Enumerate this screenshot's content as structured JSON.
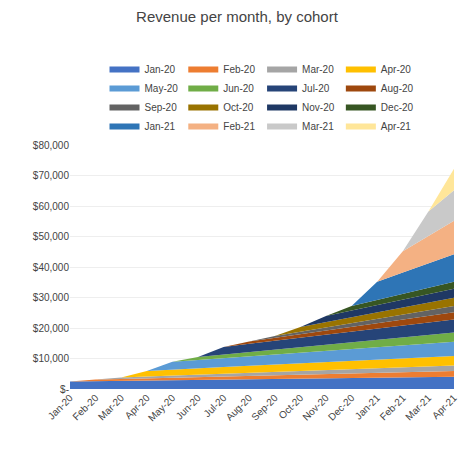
{
  "chart_data": {
    "type": "area",
    "stacked": true,
    "title": "Revenue per month, by cohort",
    "categories": [
      "Jan-20",
      "Feb-20",
      "Mar-20",
      "Apr-20",
      "May-20",
      "Jun-20",
      "Jul-20",
      "Aug-20",
      "Sep-20",
      "Oct-20",
      "Nov-20",
      "Dec-20",
      "Jan-21",
      "Feb-21",
      "Mar-21",
      "Apr-21"
    ],
    "series": [
      {
        "name": "Jan-20",
        "color": "#4472C4",
        "values": [
          2500,
          2600,
          2700,
          2800,
          2900,
          3000,
          3100,
          3200,
          3300,
          3400,
          3500,
          3600,
          3700,
          3800,
          3900,
          4000
        ]
      },
      {
        "name": "Feb-20",
        "color": "#ED7D31",
        "values": [
          0,
          500,
          600,
          700,
          800,
          900,
          1000,
          1100,
          1200,
          1300,
          1400,
          1500,
          1600,
          1700,
          1800,
          1900
        ]
      },
      {
        "name": "Mar-20",
        "color": "#A5A5A5",
        "values": [
          0,
          0,
          500,
          600,
          700,
          800,
          900,
          1000,
          1100,
          1200,
          1300,
          1400,
          1500,
          1600,
          1700,
          1800
        ]
      },
      {
        "name": "Apr-20",
        "color": "#FFC000",
        "values": [
          0,
          0,
          0,
          1800,
          2000,
          2100,
          2200,
          2300,
          2400,
          2500,
          2600,
          2700,
          2800,
          2900,
          3000,
          3100
        ]
      },
      {
        "name": "May-20",
        "color": "#5B9BD5",
        "values": [
          0,
          0,
          0,
          0,
          2500,
          2700,
          2900,
          3100,
          3300,
          3500,
          3700,
          3900,
          4100,
          4300,
          4500,
          4700
        ]
      },
      {
        "name": "Jun-20",
        "color": "#70AD47",
        "values": [
          0,
          0,
          0,
          0,
          0,
          1000,
          1200,
          1400,
          1600,
          1800,
          2000,
          2200,
          2400,
          2600,
          2800,
          3000
        ]
      },
      {
        "name": "Jul-20",
        "color": "#264478",
        "values": [
          0,
          0,
          0,
          0,
          0,
          0,
          2500,
          2700,
          2900,
          3100,
          3300,
          3500,
          3700,
          3900,
          4100,
          4300
        ]
      },
      {
        "name": "Aug-20",
        "color": "#9E480E",
        "values": [
          0,
          0,
          0,
          0,
          0,
          0,
          0,
          800,
          1000,
          1200,
          1400,
          1600,
          1800,
          2000,
          2200,
          2400
        ]
      },
      {
        "name": "Sep-20",
        "color": "#636363",
        "values": [
          0,
          0,
          0,
          0,
          0,
          0,
          0,
          0,
          600,
          800,
          1000,
          1200,
          1400,
          1600,
          1800,
          2000
        ]
      },
      {
        "name": "Oct-20",
        "color": "#997300",
        "values": [
          0,
          0,
          0,
          0,
          0,
          0,
          0,
          0,
          0,
          1500,
          1700,
          1900,
          2100,
          2300,
          2500,
          2700
        ]
      },
      {
        "name": "Nov-20",
        "color": "#1F3864",
        "values": [
          0,
          0,
          0,
          0,
          0,
          0,
          0,
          0,
          0,
          0,
          2000,
          2200,
          2400,
          2600,
          2800,
          3000
        ]
      },
      {
        "name": "Dec-20",
        "color": "#375623",
        "values": [
          0,
          0,
          0,
          0,
          0,
          0,
          0,
          0,
          0,
          0,
          0,
          1500,
          1700,
          1900,
          2100,
          2300
        ]
      },
      {
        "name": "Jan-21",
        "color": "#2E75B6",
        "values": [
          0,
          0,
          0,
          0,
          0,
          0,
          0,
          0,
          0,
          0,
          0,
          0,
          6000,
          7000,
          8000,
          9000
        ]
      },
      {
        "name": "Feb-21",
        "color": "#F4B183",
        "values": [
          0,
          0,
          0,
          0,
          0,
          0,
          0,
          0,
          0,
          0,
          0,
          0,
          0,
          7000,
          9000,
          11000
        ]
      },
      {
        "name": "Mar-21",
        "color": "#C9C9C9",
        "values": [
          0,
          0,
          0,
          0,
          0,
          0,
          0,
          0,
          0,
          0,
          0,
          0,
          0,
          0,
          8000,
          10000
        ]
      },
      {
        "name": "Apr-21",
        "color": "#FFE699",
        "values": [
          0,
          0,
          0,
          0,
          0,
          0,
          0,
          0,
          0,
          0,
          0,
          0,
          0,
          0,
          0,
          7000
        ]
      }
    ],
    "ylim": [
      0,
      80000
    ],
    "yticks": [
      {
        "value": 0,
        "label": "$-"
      },
      {
        "value": 10000,
        "label": "$10,000"
      },
      {
        "value": 20000,
        "label": "$20,000"
      },
      {
        "value": 30000,
        "label": "$30,000"
      },
      {
        "value": 40000,
        "label": "$40,000"
      },
      {
        "value": 50000,
        "label": "$50,000"
      },
      {
        "value": 60000,
        "label": "$60,000"
      },
      {
        "value": 70000,
        "label": "$70,000"
      },
      {
        "value": 80000,
        "label": "$80,000"
      }
    ],
    "grid": true,
    "legend": "top"
  }
}
